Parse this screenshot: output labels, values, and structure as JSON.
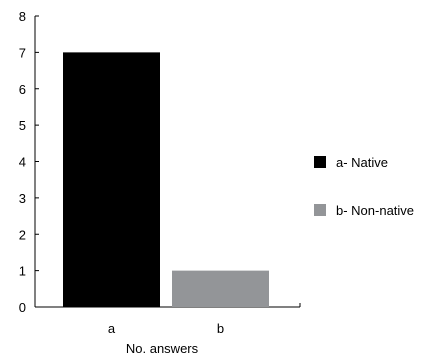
{
  "chart_data": {
    "type": "bar",
    "categories": [
      "a",
      "b"
    ],
    "values": [
      7,
      1
    ],
    "colors": [
      "#000000",
      "#939598"
    ],
    "title": "",
    "xlabel": "No. answers",
    "ylabel": "",
    "ylim": [
      0,
      8
    ],
    "yticks": [
      "0",
      "1",
      "2",
      "3",
      "4",
      "5",
      "6",
      "7",
      "8"
    ],
    "grid": false,
    "legend_position": "right",
    "legend": [
      {
        "label": "a- Native",
        "color": "#000000"
      },
      {
        "label": "b- Non-native",
        "color": "#939598"
      }
    ]
  }
}
